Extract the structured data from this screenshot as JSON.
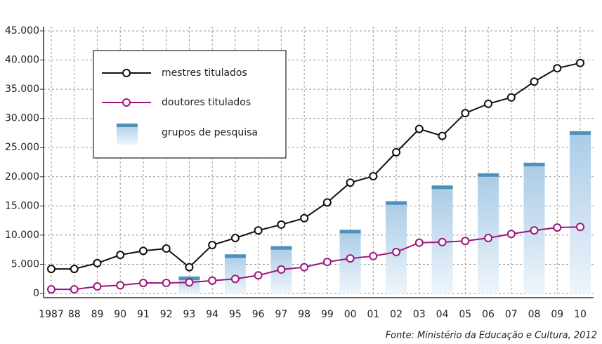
{
  "chart_data": {
    "type": "line",
    "categories": [
      "1987",
      "88",
      "89",
      "90",
      "91",
      "92",
      "93",
      "94",
      "95",
      "96",
      "97",
      "98",
      "99",
      "00",
      "01",
      "02",
      "03",
      "04",
      "05",
      "06",
      "07",
      "08",
      "09",
      "10"
    ],
    "series": [
      {
        "name": "mestres titulados",
        "color": "#111111",
        "values": [
          4200,
          4200,
          5200,
          6600,
          7300,
          7700,
          4500,
          8300,
          9500,
          10800,
          11800,
          12900,
          15600,
          19000,
          20100,
          24200,
          28200,
          27000,
          30900,
          32500,
          33600,
          36300,
          38600,
          39500
        ]
      },
      {
        "name": "doutores titulados",
        "color": "#a0147e",
        "values": [
          700,
          700,
          1200,
          1400,
          1800,
          1800,
          1900,
          2200,
          2500,
          3100,
          4100,
          4500,
          5400,
          6000,
          6400,
          7100,
          8700,
          8800,
          9000,
          9500,
          10200,
          10800,
          11300,
          11400
        ]
      },
      {
        "name": "grupos de pesquisa",
        "type": "bar",
        "color": "#4f8fb8",
        "values": [
          null,
          null,
          null,
          null,
          null,
          null,
          2900,
          null,
          6700,
          null,
          8100,
          null,
          null,
          10900,
          null,
          15800,
          null,
          18500,
          null,
          20600,
          null,
          22400,
          null,
          27800
        ]
      }
    ],
    "ylim": [
      0,
      45000
    ],
    "yticks": [
      0,
      {
        "value": 5000,
        "label": "5.000"
      },
      {
        "value": 10000,
        "label": "10.000"
      },
      {
        "value": 15000,
        "label": "15.000"
      },
      {
        "value": 20000,
        "label": "20.000"
      },
      {
        "value": 25000,
        "label": "25.000"
      },
      {
        "value": 30000,
        "label": "30.000"
      },
      {
        "value": 35000,
        "label": "35.000"
      },
      {
        "value": 40000,
        "label": "40.000"
      },
      {
        "value": 45000,
        "label": "45.000"
      }
    ],
    "grid": true,
    "source": "Fonte: Ministério da Educação e Cultura, 2012"
  }
}
